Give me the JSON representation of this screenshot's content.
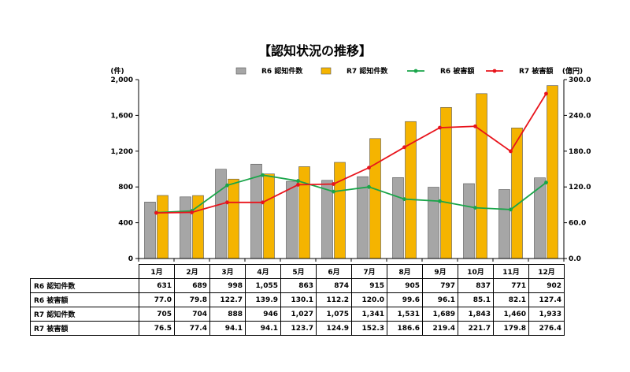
{
  "chart_data": {
    "type": "bar+line",
    "title": "【認知状況の推移】",
    "categories": [
      "1月",
      "2月",
      "3月",
      "4月",
      "5月",
      "6月",
      "7月",
      "8月",
      "9月",
      "10月",
      "11月",
      "12月"
    ],
    "y_left": {
      "unit": "(件)",
      "min": 0,
      "max": 2000,
      "ticks": [
        0,
        400,
        800,
        1200,
        1600,
        2000
      ],
      "tick_labels": [
        "0",
        "400",
        "800",
        "1,200",
        "1,600",
        "2,000"
      ]
    },
    "y_right": {
      "unit": "(億円)",
      "min": 0,
      "max": 300,
      "ticks": [
        0,
        60,
        120,
        180,
        240,
        300
      ],
      "tick_labels": [
        "0.0",
        "60.0",
        "120.0",
        "180.0",
        "240.0",
        "300.0"
      ]
    },
    "series": [
      {
        "name": "R6 認知件数",
        "kind": "bar",
        "axis": "left",
        "color": "#a6a6a6",
        "values": [
          631,
          689,
          998,
          1055,
          863,
          874,
          915,
          905,
          797,
          837,
          771,
          902
        ],
        "display": [
          "631",
          "689",
          "998",
          "1,055",
          "863",
          "874",
          "915",
          "905",
          "797",
          "837",
          "771",
          "902"
        ]
      },
      {
        "name": "R6 被害額",
        "kind": "line",
        "axis": "right",
        "color": "#1aa54a",
        "values": [
          77.0,
          79.8,
          122.7,
          139.9,
          130.1,
          112.2,
          120.0,
          99.6,
          96.1,
          85.1,
          82.1,
          127.4
        ],
        "display": [
          "77.0",
          "79.8",
          "122.7",
          "139.9",
          "130.1",
          "112.2",
          "120.0",
          "99.6",
          "96.1",
          "85.1",
          "82.1",
          "127.4"
        ]
      },
      {
        "name": "R7 認知件数",
        "kind": "bar",
        "axis": "left",
        "color": "#f5b400",
        "values": [
          705,
          704,
          888,
          946,
          1027,
          1075,
          1341,
          1531,
          1689,
          1843,
          1460,
          1933
        ],
        "display": [
          "705",
          "704",
          "888",
          "946",
          "1,027",
          "1,075",
          "1,341",
          "1,531",
          "1,689",
          "1,843",
          "1,460",
          "1,933"
        ]
      },
      {
        "name": "R7 被害額",
        "kind": "line",
        "axis": "right",
        "color": "#e8141c",
        "values": [
          76.5,
          77.4,
          94.1,
          94.1,
          123.7,
          124.9,
          152.3,
          186.6,
          219.4,
          221.7,
          179.8,
          276.4
        ],
        "display": [
          "76.5",
          "77.4",
          "94.1",
          "94.1",
          "123.7",
          "124.9",
          "152.3",
          "186.6",
          "219.4",
          "221.7",
          "179.8",
          "276.4"
        ]
      }
    ],
    "legend": [
      "R6 認知件数",
      "R7 認知件数",
      "R6 被害額",
      "R7 被害額"
    ],
    "legend_position": "top-right",
    "grid": false
  }
}
